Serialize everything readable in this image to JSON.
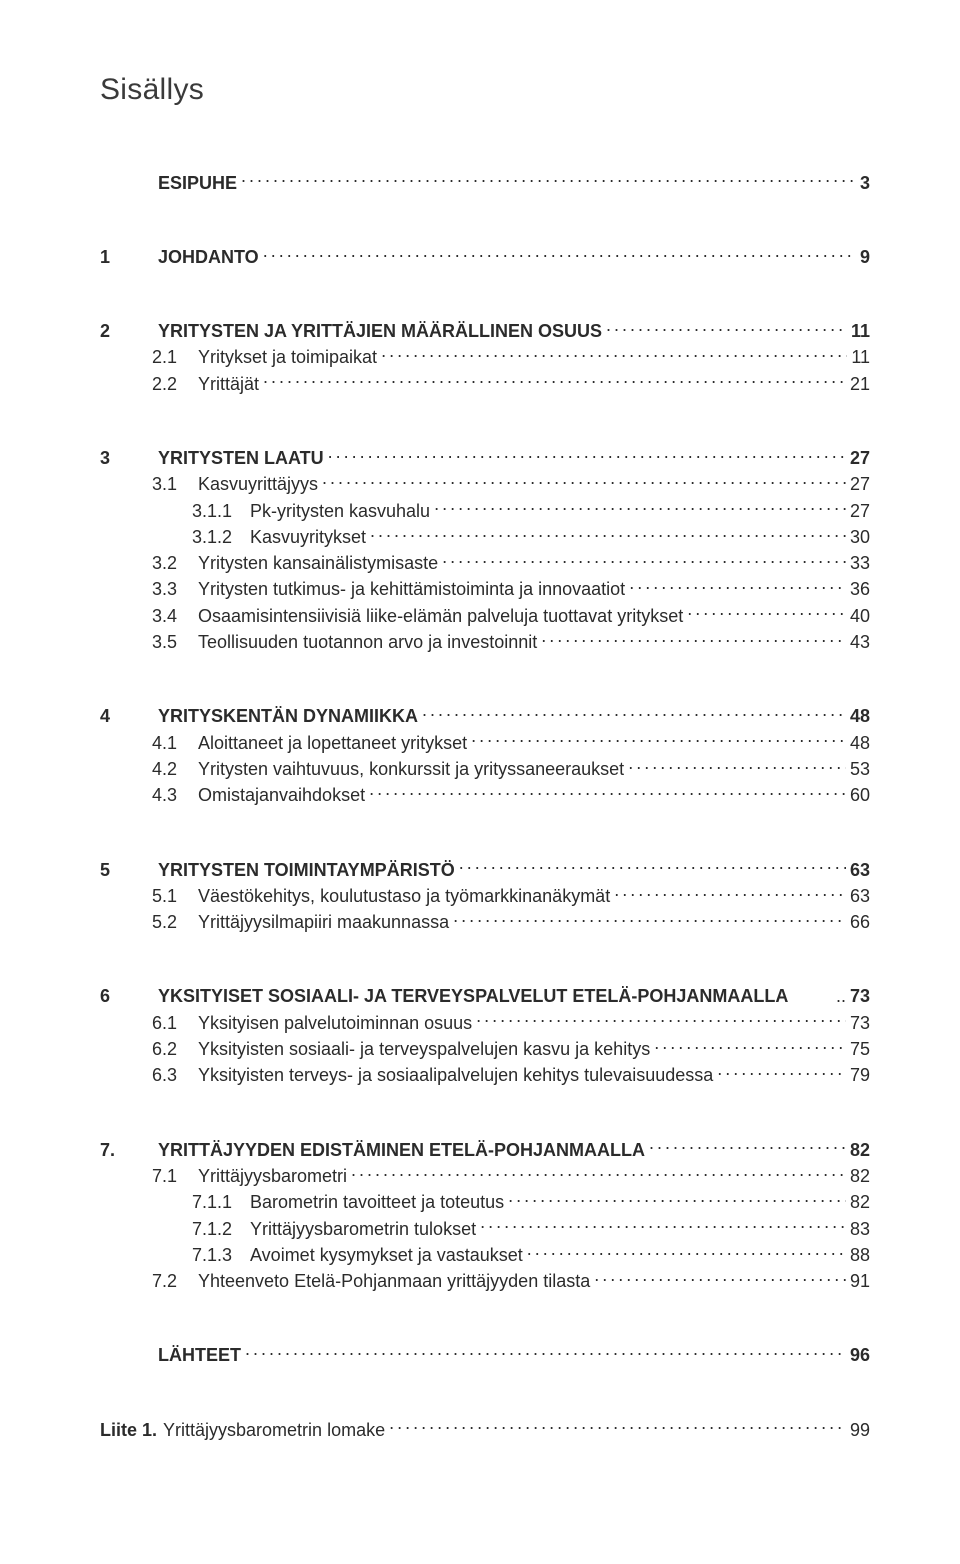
{
  "title": "Sisällys",
  "entries": [
    {
      "type": "bold",
      "num": "",
      "label": "ESIPUHE",
      "page": "3"
    },
    {
      "type": "gap"
    },
    {
      "type": "bold",
      "num": "1",
      "label": "JOHDANTO",
      "page": "9"
    },
    {
      "type": "gap"
    },
    {
      "type": "bold",
      "num": "2",
      "label": "YRITYSTEN JA YRITTÄJIEN MÄÄRÄLLINEN OSUUS",
      "page": "11"
    },
    {
      "type": "sub",
      "num": "2.1",
      "label": "Yritykset ja toimipaikat",
      "page": "11"
    },
    {
      "type": "sub",
      "num": "2.2",
      "label": "Yrittäjät",
      "page": "21"
    },
    {
      "type": "gap"
    },
    {
      "type": "bold",
      "num": "3",
      "label": "YRITYSTEN LAATU",
      "page": "27"
    },
    {
      "type": "sub",
      "num": "3.1",
      "label": "Kasvuyrittäjyys",
      "page": "27"
    },
    {
      "type": "sub2",
      "num": "3.1.1",
      "label": "Pk-yritysten kasvuhalu",
      "page": "27"
    },
    {
      "type": "sub2",
      "num": "3.1.2",
      "label": "Kasvuyritykset",
      "page": "30"
    },
    {
      "type": "sub",
      "num": "3.2",
      "label": "Yritysten kansainälistymisaste",
      "page": "33"
    },
    {
      "type": "sub",
      "num": "3.3",
      "label": "Yritysten tutkimus- ja kehittämistoiminta ja innovaatiot",
      "page": "36"
    },
    {
      "type": "sub",
      "num": "3.4",
      "label": "Osaamisintensiivisiä liike-elämän palveluja tuottavat yritykset",
      "page": "40"
    },
    {
      "type": "sub",
      "num": "3.5",
      "label": "Teollisuuden tuotannon arvo ja investoinnit",
      "page": "43"
    },
    {
      "type": "gap"
    },
    {
      "type": "bold",
      "num": "4",
      "label": "YRITYSKENTÄN DYNAMIIKKA",
      "page": "48"
    },
    {
      "type": "sub",
      "num": "4.1",
      "label": "Aloittaneet ja lopettaneet yritykset",
      "page": "48"
    },
    {
      "type": "sub",
      "num": "4.2",
      "label": "Yritysten vaihtuvuus, konkurssit ja yrityssaneeraukset",
      "page": "53"
    },
    {
      "type": "sub",
      "num": "4.3",
      "label": "Omistajanvaihdokset",
      "page": "60"
    },
    {
      "type": "gap"
    },
    {
      "type": "bold",
      "num": "5",
      "label": "YRITYSTEN TOIMINTAYMPÄRISTÖ",
      "page": "63"
    },
    {
      "type": "sub",
      "num": "5.1",
      "label": "Väestökehitys, koulutustaso ja työmarkkinanäkymät",
      "page": "63"
    },
    {
      "type": "sub",
      "num": "5.2",
      "label": "Yrittäjyysilmapiiri maakunnassa",
      "page": "66"
    },
    {
      "type": "gap"
    },
    {
      "type": "bold",
      "num": "6",
      "label": "YKSITYISET SOSIAALI- JA TERVEYSPALVELUT ETELÄ-POHJANMAALLA",
      "page": "73",
      "tight": true
    },
    {
      "type": "sub",
      "num": "6.1",
      "label": "Yksityisen palvelutoiminnan osuus",
      "page": "73"
    },
    {
      "type": "sub",
      "num": "6.2",
      "label": "Yksityisten sosiaali- ja terveyspalvelujen kasvu ja kehitys",
      "page": "75"
    },
    {
      "type": "sub",
      "num": "6.3",
      "label": "Yksityisten terveys- ja sosiaalipalvelujen kehitys tulevaisuudessa",
      "page": "79"
    },
    {
      "type": "gap"
    },
    {
      "type": "bold",
      "num": "7.",
      "label": "YRITTÄJYYDEN EDISTÄMINEN ETELÄ-POHJANMAALLA",
      "page": "82"
    },
    {
      "type": "sub",
      "num": "7.1",
      "label": "Yrittäjyysbarometri",
      "page": "82"
    },
    {
      "type": "sub2",
      "num": "7.1.1",
      "label": "Barometrin tavoitteet ja toteutus",
      "page": "82"
    },
    {
      "type": "sub2",
      "num": "7.1.2",
      "label": "Yrittäjyysbarometrin tulokset",
      "page": "83"
    },
    {
      "type": "sub2",
      "num": "7.1.3",
      "label": "Avoimet kysymykset ja vastaukset",
      "page": "88"
    },
    {
      "type": "sub",
      "num": "7.2",
      "label": "Yhteenveto Etelä-Pohjanmaan yrittäjyyden tilasta",
      "page": "91"
    },
    {
      "type": "gap"
    },
    {
      "type": "bold",
      "num": "",
      "label": "LÄHTEET",
      "page": "96"
    },
    {
      "type": "gap"
    },
    {
      "type": "appendix",
      "prefix": "Liite 1.",
      "label": "Yrittäjyysbarometrin lomake",
      "page": "99"
    }
  ]
}
